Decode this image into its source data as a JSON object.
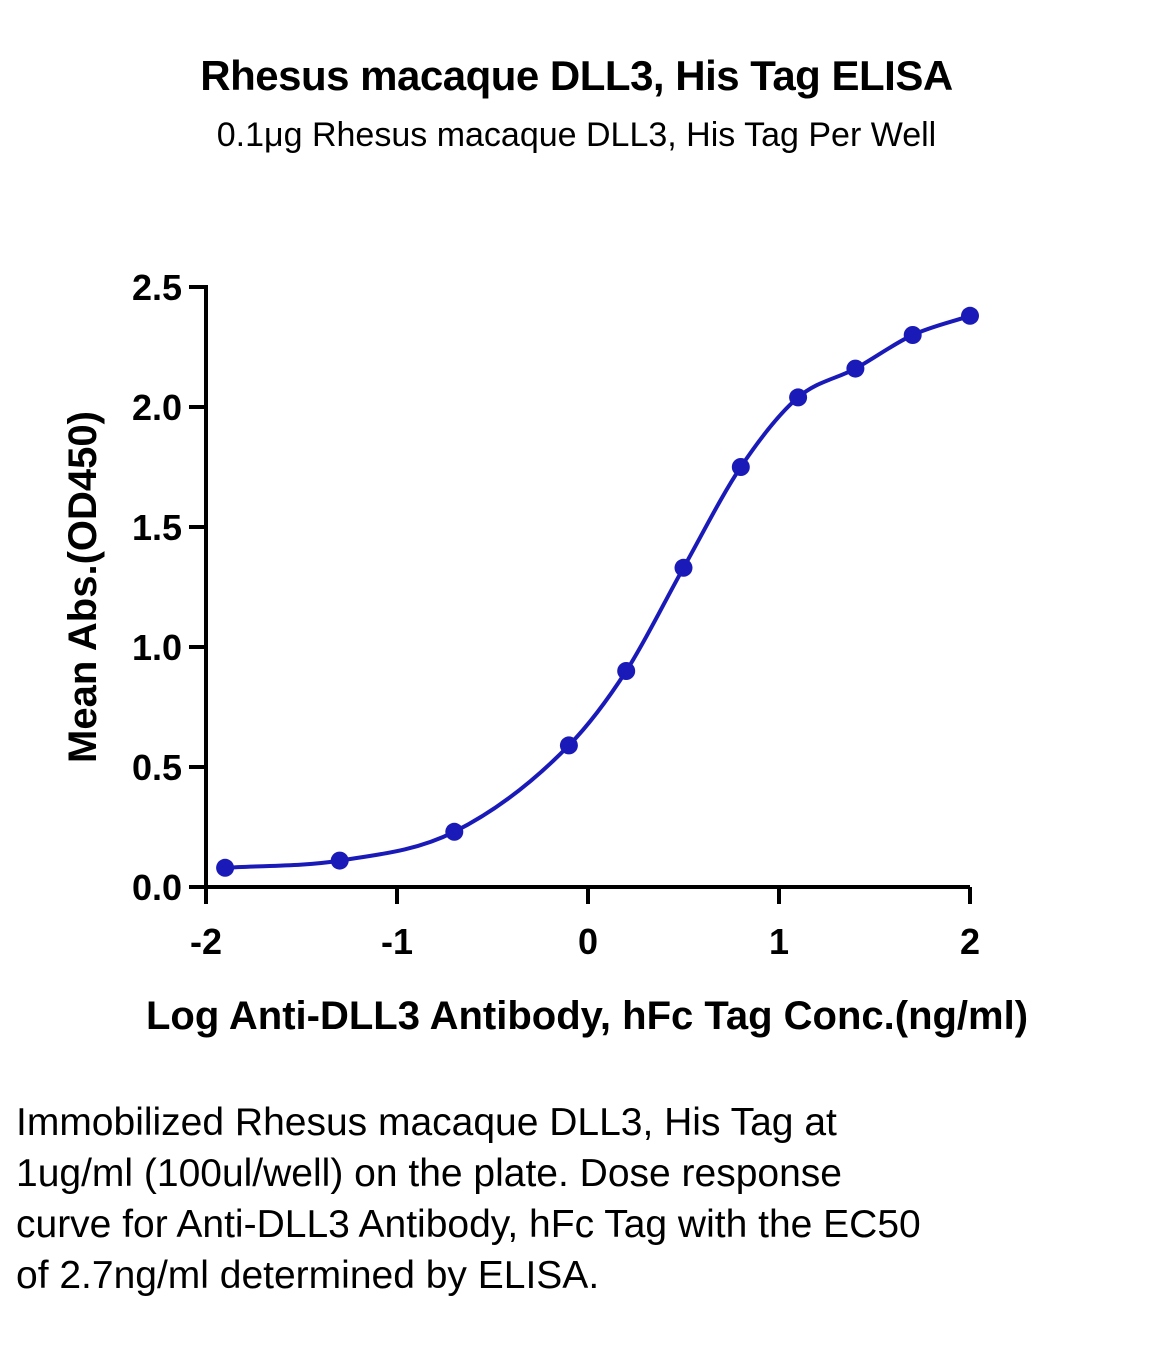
{
  "title": "Rhesus macaque DLL3, His Tag ELISA",
  "subtitle": "0.1μg Rhesus macaque DLL3, His Tag Per Well",
  "caption": "Immobilized Rhesus macaque DLL3, His Tag at 1ug/ml (100ul/well) on the plate. Dose response curve for Anti-DLL3 Antibody, hFc Tag with the EC50 of 2.7ng/ml determined by ELISA.",
  "colors": {
    "series": "#1a1ab8",
    "axis": "#000000"
  },
  "chart_data": {
    "type": "scatter",
    "title": "Rhesus macaque DLL3, His Tag ELISA",
    "subtitle": "0.1μg Rhesus macaque DLL3, His Tag Per Well",
    "xlabel": "Log Anti-DLL3 Antibody, hFc Tag Conc.(ng/ml)",
    "ylabel": "Mean Abs.(OD450)",
    "xlim": [
      -2,
      2
    ],
    "ylim": [
      0,
      2.5
    ],
    "x_ticks": [
      "-2",
      "-1",
      "0",
      "1",
      "2"
    ],
    "y_ticks": [
      "0.0",
      "0.5",
      "1.0",
      "1.5",
      "2.0",
      "2.5"
    ],
    "grid": false,
    "series": [
      {
        "x": [
          -1.9,
          -1.3,
          -0.7,
          -0.1,
          0.2,
          0.5,
          0.8,
          1.1,
          1.4,
          1.7,
          2.0
        ],
        "y": [
          0.08,
          0.11,
          0.23,
          0.59,
          0.9,
          1.33,
          1.75,
          2.04,
          2.16,
          2.3,
          2.38
        ],
        "fit": "four-parameter logistic sigmoid curve"
      }
    ]
  }
}
